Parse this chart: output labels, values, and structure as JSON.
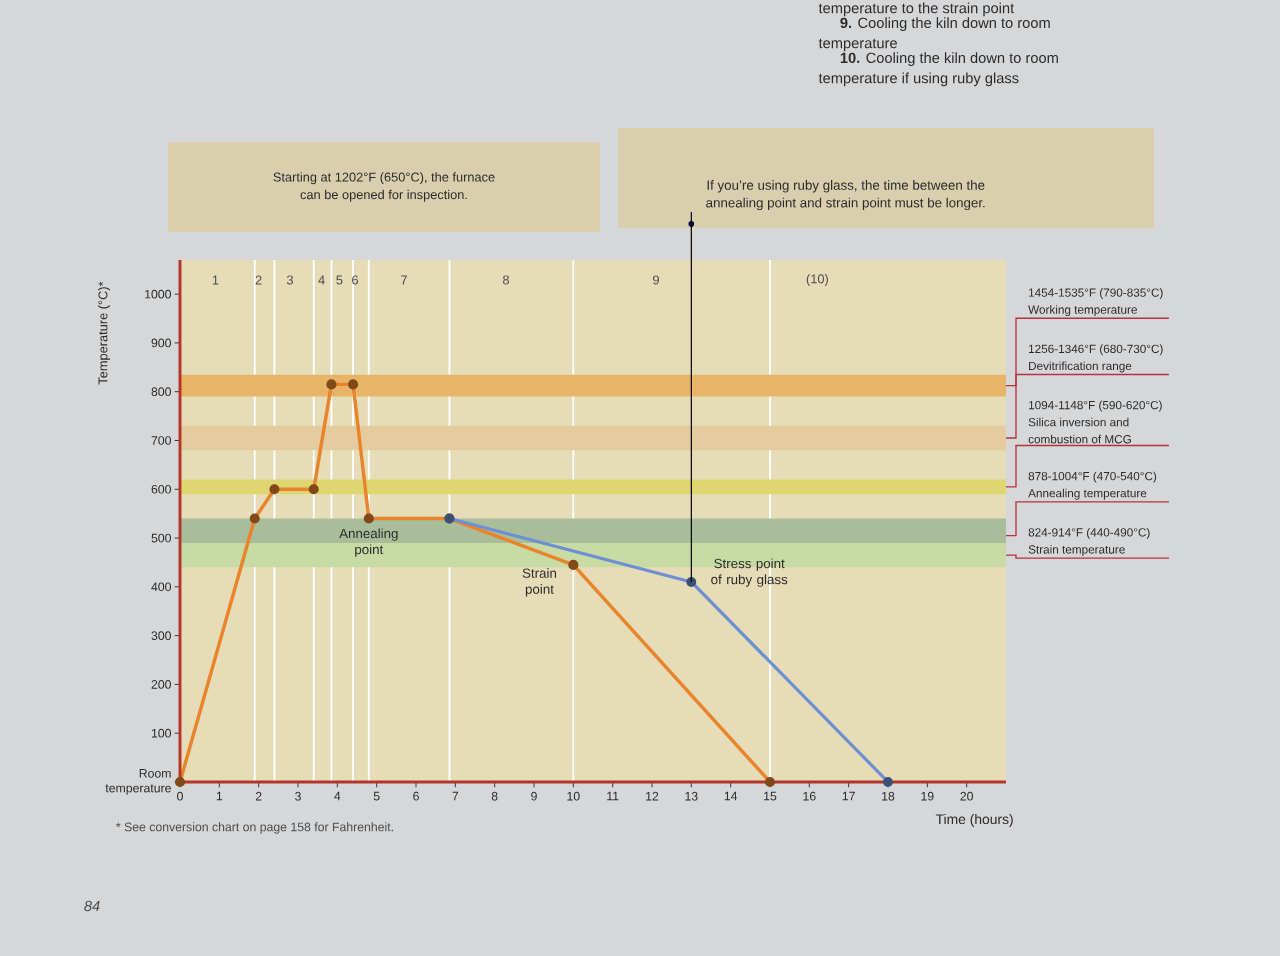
{
  "chart_data": {
    "type": "line",
    "xlabel": "Time (hours)",
    "ylabel": "Temperature (°C)*",
    "xlim": [
      0,
      21
    ],
    "ylim": [
      0,
      1070
    ],
    "xticks": [
      0,
      1,
      2,
      3,
      4,
      5,
      6,
      7,
      8,
      9,
      10,
      11,
      12,
      13,
      14,
      15,
      16,
      17,
      18,
      19,
      20
    ],
    "yticks": [
      {
        "value": 0,
        "label": "Room temperature"
      },
      100,
      200,
      300,
      400,
      500,
      600,
      700,
      800,
      900,
      1000
    ],
    "marker": "circle",
    "series": [
      {
        "color": "#e8852c",
        "x": [
          0,
          1.9,
          2.4,
          3.4,
          3.85,
          4.4,
          4.8,
          6.85,
          10,
          15
        ],
        "values": [
          0,
          540,
          600,
          600,
          815,
          815,
          540,
          540,
          445,
          0
        ]
      },
      {
        "color": "#6d8fd3",
        "x": [
          6.85,
          13,
          18
        ],
        "values": [
          540,
          410,
          0
        ]
      }
    ],
    "ref_lines": [
      {
        "axis": "x",
        "value": 1.9,
        "color": "#ffffff"
      },
      {
        "axis": "x",
        "value": 2.4,
        "color": "#ffffff"
      },
      {
        "axis": "x",
        "value": 3.4,
        "color": "#ffffff"
      },
      {
        "axis": "x",
        "value": 3.85,
        "color": "#ffffff"
      },
      {
        "axis": "x",
        "value": 4.4,
        "color": "#ffffff"
      },
      {
        "axis": "x",
        "value": 4.8,
        "color": "#ffffff"
      },
      {
        "axis": "x",
        "value": 6.85,
        "color": "#ffffff"
      },
      {
        "axis": "x",
        "value": 10,
        "color": "#ffffff"
      },
      {
        "axis": "x",
        "value": 15,
        "color": "#ffffff"
      }
    ],
    "bands": [
      {
        "axis": "y",
        "from": 790,
        "to": 835,
        "label": "1454-1535°F (790-835°C) Working temperature",
        "color": "#e8b468"
      },
      {
        "axis": "y",
        "from": 680,
        "to": 730,
        "label": "1256-1346°F (680-730°C) Devitrification range",
        "color": "#e4cc9e"
      },
      {
        "axis": "y",
        "from": 590,
        "to": 620,
        "label": "1094-1148°F (590-620°C) Silica inversion and combustion of MCG",
        "color": "#dfd672"
      },
      {
        "axis": "y",
        "from": 470,
        "to": 540,
        "label": "878-1004°F (470-540°C) Annealing temperature",
        "color": "#a9bd9b"
      },
      {
        "axis": "y",
        "from": 440,
        "to": 490,
        "label": "824-914°F (440-490°C) Strain temperature",
        "color": "#c9dba4"
      }
    ],
    "annotations": [
      "Starting at 1202°F (650°C), the furnace can be opened for inspection.",
      {
        "text": "If you’re using ruby glass, the time between the annealing point and strain point must be longer.",
        "x": 13,
        "y": 410
      },
      {
        "text": "Annealing point",
        "x": 4.8,
        "y": 540
      },
      {
        "text": "Strain point",
        "x": 10,
        "y": 445
      },
      {
        "text": "Stress point of ruby glass",
        "x": 13,
        "y": 410
      },
      "* See conversion chart on page 158 for Fahrenheit.",
      "temperature to the strain point",
      "**9.** Cooling the kiln down to room temperature",
      "**10.** Cooling the kiln down to room temperature if using ruby glass",
      "84",
      "1",
      "2",
      "3",
      "4",
      "5",
      "6",
      "7",
      "8",
      "9",
      "(10)"
    ]
  }
}
